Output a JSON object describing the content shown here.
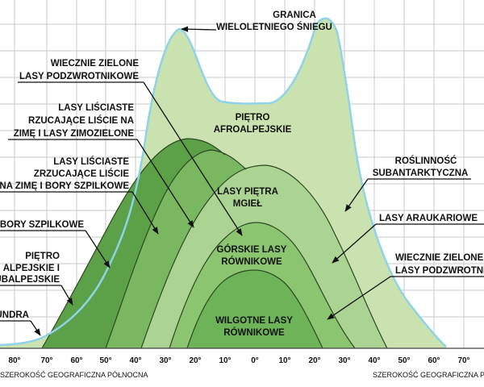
{
  "colors": {
    "outer": "#c9e2b0",
    "outer_edge": "#8fd3e8",
    "cloud_forest": "#abd392",
    "montane_forest": "#8bc570",
    "rainforest": "#6cb457",
    "deciduous": "#79b860",
    "evergreen_subtrop": "#5ca147",
    "boundary_line": "#2c4a22"
  },
  "labels": {
    "snowline_1": "GRANICA",
    "snowline_2": "WIELOLETNIEGO ŚNIEGU",
    "afroalpine_1": "PIĘTRO",
    "afroalpine_2": "AFROALPEJSKIE",
    "evergreen_left_1": "WIECZNIE ZIELONE",
    "evergreen_left_2": "LASY PODZWROTNIKOWE",
    "deciduous_1": "LASY LIŚCIASTE",
    "deciduous_2": "RZUCAJĄCE LIŚCIE NA",
    "deciduous_3": "ZIMĘ I LASY ZIMOZIELONE",
    "deciduous_b1": "LASY LIŚCIASTE",
    "deciduous_b2": "ZRZUCAJĄCE  LIŚCIE",
    "deciduous_b3": "NA ZIMĘ I BORY SZPILKOWE",
    "boreal": "BORY SZPILKOWE",
    "alpine_1": "PIĘTRO",
    "alpine_2": "ALPEJSKIE I",
    "alpine_3": "SUBALPEJSKIE",
    "tundra": "TUNDRA",
    "cloud_forest_1": "LASY PIĘTRA",
    "cloud_forest_2": "MGIEŁ",
    "montane_1": "GÓRSKIE LASY",
    "montane_2": "RÓWNIKOWE",
    "rainforest_1": "WILGOTNE LASY",
    "rainforest_2": "RÓWNIKOWE",
    "subantarctic_1": "ROŚLINNOŚĆ",
    "subantarctic_2": "SUBANTARKTYCZNA",
    "araucaria": "LASY ARAUKARIOWE",
    "evergreen_right_1": "WIECZNIE ZIELONE",
    "evergreen_right_2": "LASY PODZWROTNIKOWE"
  },
  "axis": {
    "ticks": [
      "80°",
      "70°",
      "60°",
      "50°",
      "40°",
      "30°",
      "20°",
      "10°",
      "0°",
      "10°",
      "20°",
      "30°",
      "40°",
      "50°",
      "60°",
      "70°"
    ],
    "left_title": "SZEROKOŚĆ GEOGRAFICZNA PÓŁNOCNA",
    "right_title": "SZEROKOŚĆ GEOGRAFICZNA POŁUDNIOWA"
  }
}
